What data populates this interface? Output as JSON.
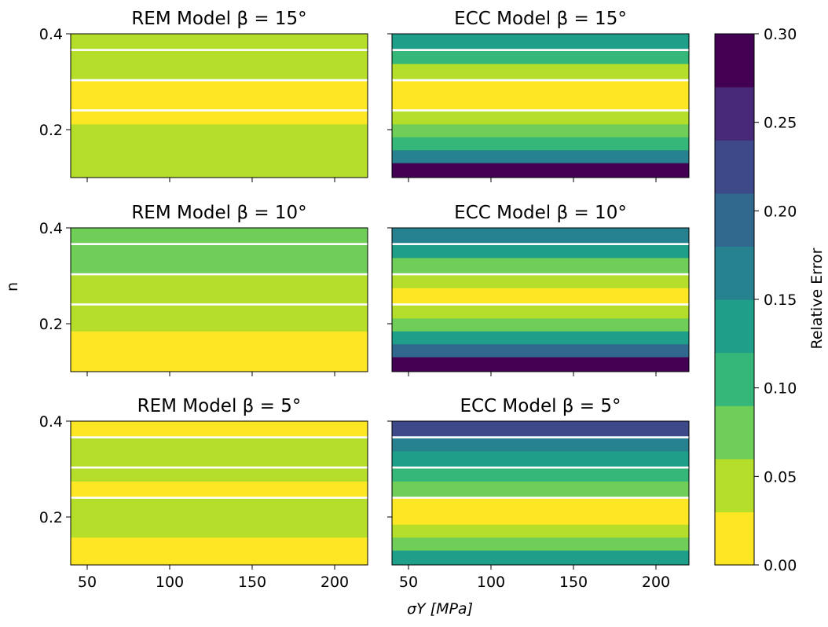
{
  "colorbar": {
    "label": "Relative Error",
    "ticks": [
      "0.00",
      "0.05",
      "0.10",
      "0.15",
      "0.20",
      "0.25",
      "0.30"
    ],
    "range": [
      0.0,
      0.3
    ],
    "colors": [
      "#fde725",
      "#b5de2b",
      "#6ece58",
      "#35b779",
      "#1f9e89",
      "#26828e",
      "#31688e",
      "#3e4989",
      "#482878",
      "#440154"
    ]
  },
  "axes": {
    "xlabel": "σY [MPa]",
    "ylabel": "n",
    "x_ticks": [
      "50",
      "100",
      "150",
      "200"
    ],
    "y_ticks": [
      "0.2",
      "0.4"
    ]
  },
  "chart_data": [
    {
      "type": "heatmap",
      "title": "REM Model β = 15°",
      "x": [
        40,
        220
      ],
      "y": [
        0.1,
        0.4
      ],
      "z_min": 0.0,
      "z_max": 0.3,
      "bands": [
        {
          "n": 0.4,
          "value": 0.047
        },
        {
          "n": 0.36,
          "value": 0.042
        },
        {
          "n": 0.33,
          "value": 0.035
        },
        {
          "n": 0.29,
          "value": 0.028
        },
        {
          "n": 0.26,
          "value": 0.02
        },
        {
          "n": 0.22,
          "value": 0.025
        },
        {
          "n": 0.19,
          "value": 0.032
        },
        {
          "n": 0.16,
          "value": 0.04
        },
        {
          "n": 0.13,
          "value": 0.047
        },
        {
          "n": 0.1,
          "value": 0.055
        }
      ]
    },
    {
      "type": "heatmap",
      "title": "ECC Model β = 15°",
      "x": [
        40,
        220
      ],
      "y": [
        0.1,
        0.4
      ],
      "z_min": 0.0,
      "z_max": 0.3,
      "bands": [
        {
          "n": 0.4,
          "value": 0.125
        },
        {
          "n": 0.36,
          "value": 0.09
        },
        {
          "n": 0.33,
          "value": 0.055
        },
        {
          "n": 0.29,
          "value": 0.025
        },
        {
          "n": 0.26,
          "value": 0.02
        },
        {
          "n": 0.22,
          "value": 0.035
        },
        {
          "n": 0.19,
          "value": 0.07
        },
        {
          "n": 0.16,
          "value": 0.11
        },
        {
          "n": 0.13,
          "value": 0.17
        },
        {
          "n": 0.1,
          "value": 0.27
        }
      ]
    },
    {
      "type": "heatmap",
      "title": "REM Model β = 10°",
      "x": [
        40,
        220
      ],
      "y": [
        0.1,
        0.4
      ],
      "z_min": 0.0,
      "z_max": 0.3,
      "bands": [
        {
          "n": 0.4,
          "value": 0.062
        },
        {
          "n": 0.36,
          "value": 0.068
        },
        {
          "n": 0.33,
          "value": 0.065
        },
        {
          "n": 0.29,
          "value": 0.058
        },
        {
          "n": 0.26,
          "value": 0.05
        },
        {
          "n": 0.22,
          "value": 0.042
        },
        {
          "n": 0.19,
          "value": 0.034
        },
        {
          "n": 0.16,
          "value": 0.027
        },
        {
          "n": 0.13,
          "value": 0.02
        },
        {
          "n": 0.1,
          "value": 0.015
        }
      ]
    },
    {
      "type": "heatmap",
      "title": "ECC Model β = 10°",
      "x": [
        40,
        220
      ],
      "y": [
        0.1,
        0.4
      ],
      "z_min": 0.0,
      "z_max": 0.3,
      "bands": [
        {
          "n": 0.4,
          "value": 0.16
        },
        {
          "n": 0.36,
          "value": 0.12
        },
        {
          "n": 0.33,
          "value": 0.08
        },
        {
          "n": 0.29,
          "value": 0.03
        },
        {
          "n": 0.26,
          "value": 0.02
        },
        {
          "n": 0.22,
          "value": 0.035
        },
        {
          "n": 0.19,
          "value": 0.075
        },
        {
          "n": 0.16,
          "value": 0.125
        },
        {
          "n": 0.13,
          "value": 0.18
        },
        {
          "n": 0.1,
          "value": 0.275
        }
      ]
    },
    {
      "type": "heatmap",
      "title": "REM Model β = 5°",
      "x": [
        40,
        220
      ],
      "y": [
        0.1,
        0.4
      ],
      "z_min": 0.0,
      "z_max": 0.3,
      "bands": [
        {
          "n": 0.4,
          "value": 0.02
        },
        {
          "n": 0.36,
          "value": 0.03
        },
        {
          "n": 0.33,
          "value": 0.04
        },
        {
          "n": 0.29,
          "value": 0.035
        },
        {
          "n": 0.26,
          "value": 0.025
        },
        {
          "n": 0.22,
          "value": 0.035
        },
        {
          "n": 0.19,
          "value": 0.04
        },
        {
          "n": 0.16,
          "value": 0.03
        },
        {
          "n": 0.13,
          "value": 0.025
        },
        {
          "n": 0.1,
          "value": 0.02
        }
      ]
    },
    {
      "type": "heatmap",
      "title": "ECC Model β = 5°",
      "x": [
        40,
        220
      ],
      "y": [
        0.1,
        0.4
      ],
      "z_min": 0.0,
      "z_max": 0.3,
      "bands": [
        {
          "n": 0.4,
          "value": 0.22
        },
        {
          "n": 0.36,
          "value": 0.17
        },
        {
          "n": 0.33,
          "value": 0.125
        },
        {
          "n": 0.29,
          "value": 0.09
        },
        {
          "n": 0.26,
          "value": 0.06
        },
        {
          "n": 0.22,
          "value": 0.02
        },
        {
          "n": 0.19,
          "value": 0.025
        },
        {
          "n": 0.16,
          "value": 0.045
        },
        {
          "n": 0.13,
          "value": 0.08
        },
        {
          "n": 0.1,
          "value": 0.13
        }
      ]
    }
  ]
}
